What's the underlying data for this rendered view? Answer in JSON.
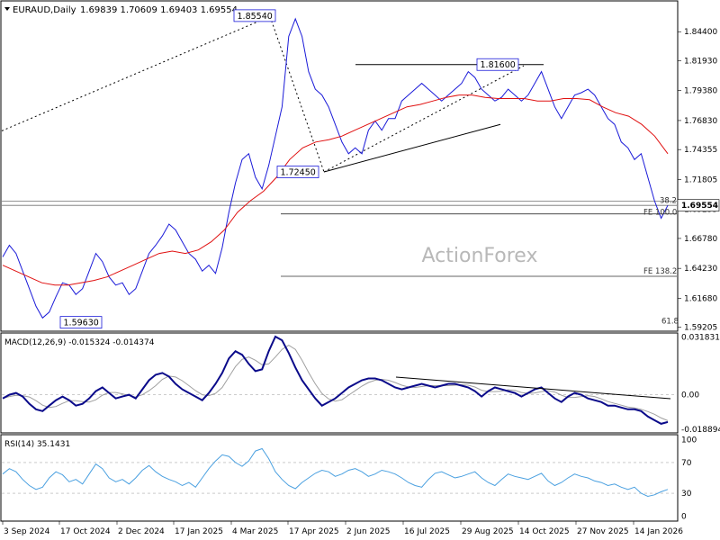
{
  "header": {
    "symbol": "EURAUD,Daily",
    "ohlc": "1.69839 1.70609 1.69403 1.69554"
  },
  "watermark": "ActionForex",
  "chart_data": [
    {
      "type": "line",
      "panel": "price",
      "x_ticks": [
        "3 Sep 2024",
        "17 Oct 2024",
        "2 Dec 2024",
        "17 Jan 2025",
        "4 Mar 2025",
        "17 Apr 2025",
        "2 Jun 2025",
        "16 Jul 2025",
        "29 Aug 2025",
        "14 Oct 2025",
        "27 Nov 2025",
        "14 Jan 2026"
      ],
      "y_ticks": [
        "1.84400",
        "1.81930",
        "1.79380",
        "1.76830",
        "1.74355",
        "1.71805",
        "1.69255",
        "1.66780",
        "1.64230",
        "1.61680",
        "1.59205"
      ],
      "ylim": [
        1.5895,
        1.8695
      ],
      "last_price": "1.69554",
      "price_series": [
        1.652,
        1.662,
        1.655,
        1.64,
        1.625,
        1.61,
        1.6,
        1.605,
        1.618,
        1.63,
        1.628,
        1.62,
        1.625,
        1.64,
        1.655,
        1.648,
        1.635,
        1.628,
        1.63,
        1.62,
        1.625,
        1.64,
        1.655,
        1.662,
        1.67,
        1.68,
        1.675,
        1.665,
        1.655,
        1.65,
        1.64,
        1.645,
        1.638,
        1.66,
        1.69,
        1.715,
        1.735,
        1.74,
        1.72,
        1.71,
        1.73,
        1.755,
        1.78,
        1.84,
        1.855,
        1.84,
        1.81,
        1.795,
        1.79,
        1.78,
        1.765,
        1.75,
        1.74,
        1.745,
        1.74,
        1.76,
        1.768,
        1.76,
        1.77,
        1.77,
        1.785,
        1.79,
        1.795,
        1.8,
        1.795,
        1.79,
        1.785,
        1.79,
        1.795,
        1.8,
        1.81,
        1.805,
        1.795,
        1.79,
        1.785,
        1.788,
        1.795,
        1.79,
        1.785,
        1.79,
        1.8,
        1.81,
        1.795,
        1.78,
        1.77,
        1.78,
        1.79,
        1.792,
        1.795,
        1.79,
        1.78,
        1.77,
        1.765,
        1.75,
        1.745,
        1.735,
        1.74,
        1.72,
        1.7,
        1.685,
        1.696
      ],
      "ma_series": [
        1.645,
        1.64,
        1.635,
        1.63,
        1.628,
        1.628,
        1.63,
        1.632,
        1.635,
        1.64,
        1.645,
        1.65,
        1.655,
        1.657,
        1.655,
        1.658,
        1.665,
        1.675,
        1.69,
        1.7,
        1.708,
        1.72,
        1.735,
        1.745,
        1.75,
        1.752,
        1.755,
        1.76,
        1.765,
        1.77,
        1.775,
        1.78,
        1.782,
        1.785,
        1.788,
        1.79,
        1.79,
        1.788,
        1.787,
        1.787,
        1.787,
        1.785,
        1.785,
        1.787,
        1.787,
        1.786,
        1.78,
        1.775,
        1.772,
        1.765,
        1.755,
        1.74
      ],
      "annotations": [
        {
          "label": "1.85540",
          "value": 1.8554
        },
        {
          "label": "1.81600",
          "value": 1.816
        },
        {
          "label": "1.72450",
          "value": 1.7245
        },
        {
          "label": "1.59630",
          "value": 1.5963
        }
      ],
      "levels": [
        {
          "label": "38.2",
          "value": 1.6995
        },
        {
          "label": "FE 100.0",
          "value": 1.6887
        },
        {
          "label": "FE 138.2",
          "value": 1.6355
        },
        {
          "label": "61.8",
          "value": 1.5915
        }
      ]
    },
    {
      "type": "line",
      "panel": "macd",
      "title": "MACD(12,26,9) -0.015324 -0.014374",
      "y_ticks": [
        "0.031831",
        "0.00",
        "-0.018894"
      ],
      "ylim": [
        -0.0205,
        0.0335
      ]
    },
    {
      "type": "line",
      "panel": "rsi",
      "title": "RSI(14) 35.1431",
      "y_ticks": [
        "100",
        "70",
        "30",
        "0"
      ],
      "ylim": [
        -5,
        105
      ]
    }
  ],
  "colors": {
    "price": "#1a1ad8",
    "ma": "#e01010",
    "macd": "#0a0a8a",
    "signal": "#a0a0a0",
    "rsi": "#4aa0e0",
    "trendline": "#000000",
    "watermark": "#b8b8b8"
  }
}
